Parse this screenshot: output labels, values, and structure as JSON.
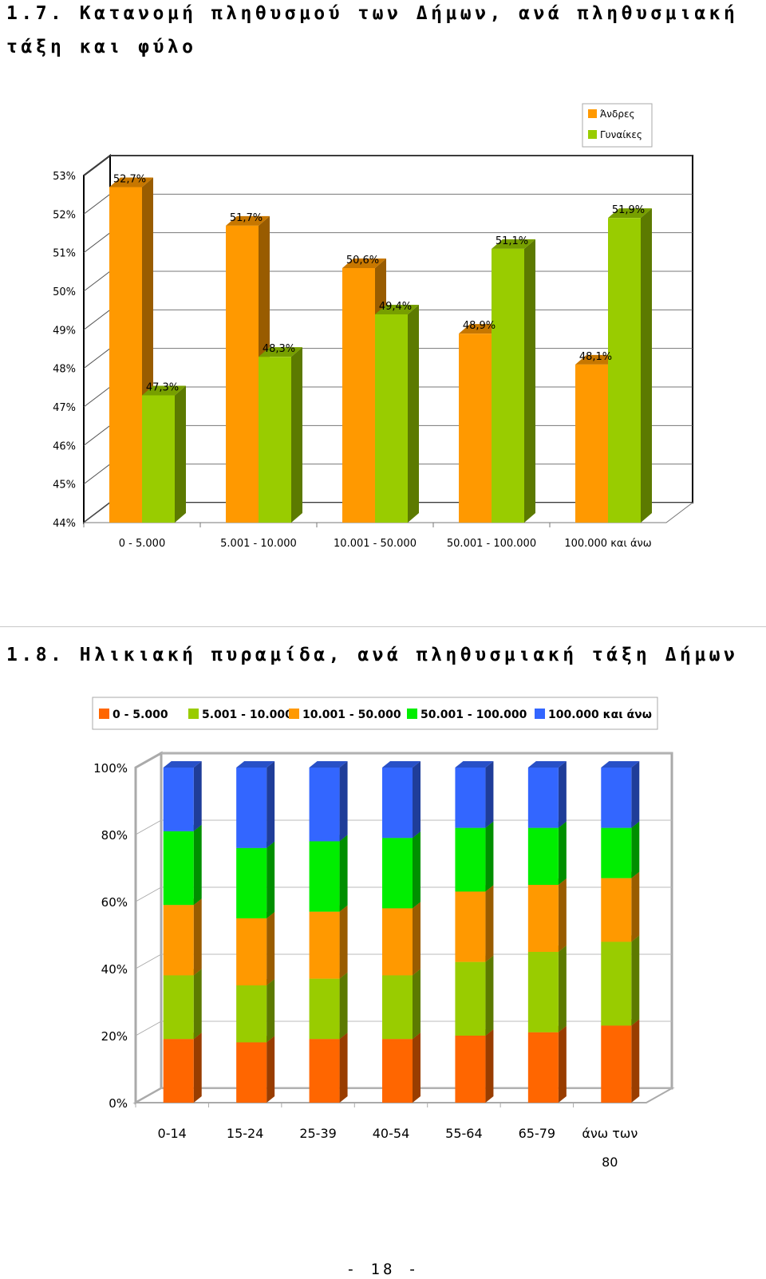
{
  "page": {
    "heading_1": "1.7. Κατανομή πληθυσμού των Δήμων, ανά πληθυσμιακή τάξη και φύλο",
    "heading_2": "1.8. Ηλικιακή πυραμίδα, ανά πληθυσμιακή τάξη Δήμων",
    "page_number": "- 18 -"
  },
  "chart_data": [
    {
      "type": "bar",
      "categories": [
        "0 - 5.000",
        "5.001 - 10.000",
        "10.001 - 50.000",
        "50.001 - 100.000",
        "100.000 και άνω"
      ],
      "series": [
        {
          "name": "Άνδρες",
          "values": [
            52.7,
            51.7,
            50.6,
            48.9,
            48.1
          ],
          "labels": [
            "52,7%",
            "51,7%",
            "50,6%",
            "48,9%",
            "48,1%"
          ],
          "color": "#ff9900"
        },
        {
          "name": "Γυναίκες",
          "values": [
            47.3,
            48.3,
            49.4,
            51.1,
            51.9
          ],
          "labels": [
            "47,3%",
            "48,3%",
            "49,4%",
            "51,1%",
            "51,9%"
          ],
          "color": "#99cc00"
        }
      ],
      "ylim": [
        44,
        53
      ],
      "yticks": [
        "44%",
        "45%",
        "46%",
        "47%",
        "48%",
        "49%",
        "50%",
        "51%",
        "52%",
        "53%"
      ],
      "grid": true,
      "legend": "top-right",
      "three_d": true
    },
    {
      "type": "bar",
      "stacked": "percent",
      "categories": [
        "0-14",
        "15-24",
        "25-39",
        "40-54",
        "55-64",
        "65-79",
        "άνω των 80"
      ],
      "series": [
        {
          "name": "0 - 5.000",
          "values": [
            19,
            18,
            19,
            19,
            20,
            21,
            23
          ],
          "color": "#ff6600"
        },
        {
          "name": "5.001 - 10.000",
          "values": [
            19,
            17,
            18,
            19,
            22,
            24,
            25
          ],
          "color": "#99cc00"
        },
        {
          "name": "10.001 - 50.000",
          "values": [
            21,
            20,
            20,
            20,
            21,
            20,
            19
          ],
          "color": "#ff9900"
        },
        {
          "name": "50.001 - 100.000",
          "values": [
            22,
            21,
            21,
            21,
            19,
            17,
            15
          ],
          "color": "#00ee00"
        },
        {
          "name": "100.000 και άνω",
          "values": [
            19,
            24,
            22,
            21,
            18,
            18,
            18
          ],
          "color": "#3366ff"
        }
      ],
      "ylim": [
        0,
        100
      ],
      "yticks": [
        "0%",
        "20%",
        "40%",
        "60%",
        "80%",
        "100%"
      ],
      "grid": true,
      "legend": "top",
      "three_d": true
    }
  ]
}
